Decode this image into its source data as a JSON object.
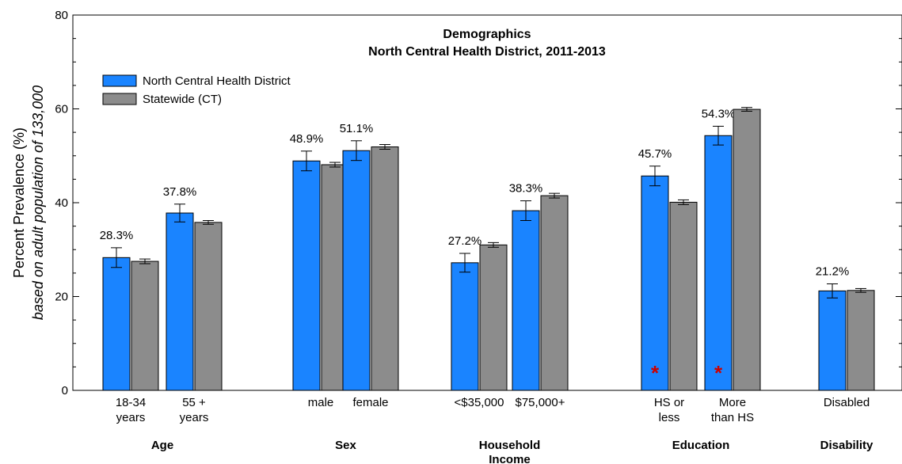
{
  "chart_data": {
    "type": "bar",
    "title": "Demographics",
    "subtitle": "North Central Health District, 2011-2013",
    "ylabel": "Percent Prevalence (%)",
    "ylabel_sub": "based on adult population of 133,000",
    "ylim": [
      0,
      80
    ],
    "yticks": [
      "0",
      "20",
      "40",
      "60",
      "80"
    ],
    "grid": false,
    "legend_position": "top-left",
    "colors": {
      "district": "#1a84ff",
      "statewide": "#8c8c8c"
    },
    "series": [
      {
        "name": "North Central Health District"
      },
      {
        "name": "Statewide (CT)"
      }
    ],
    "groups": [
      {
        "name": "Age",
        "categories": [
          {
            "label": [
              "18-34",
              "years"
            ],
            "district": 28.3,
            "district_label": "28.3%",
            "district_err": [
              26.2,
              30.4
            ],
            "statewide": 27.5,
            "statewide_err": [
              27.0,
              28.0
            ],
            "significant": false
          },
          {
            "label": [
              "55 +",
              "years"
            ],
            "district": 37.8,
            "district_label": "37.8%",
            "district_err": [
              35.9,
              39.7
            ],
            "statewide": 35.8,
            "statewide_err": [
              35.4,
              36.2
            ],
            "significant": false
          }
        ]
      },
      {
        "name": "Sex",
        "categories": [
          {
            "label": [
              "male"
            ],
            "district": 48.9,
            "district_label": "48.9%",
            "district_err": [
              46.8,
              51.0
            ],
            "statewide": 48.1,
            "statewide_err": [
              47.6,
              48.6
            ],
            "significant": false
          },
          {
            "label": [
              "female"
            ],
            "district": 51.1,
            "district_label": "51.1%",
            "district_err": [
              49.0,
              53.2
            ],
            "statewide": 51.9,
            "statewide_err": [
              51.4,
              52.4
            ],
            "significant": false
          }
        ]
      },
      {
        "name": "Household Income",
        "categories": [
          {
            "label": [
              "<$35,000"
            ],
            "district": 27.2,
            "district_label": "27.2%",
            "district_err": [
              25.2,
              29.2
            ],
            "statewide": 31.0,
            "statewide_err": [
              30.5,
              31.5
            ],
            "significant": false
          },
          {
            "label": [
              "$75,000+"
            ],
            "district": 38.3,
            "district_label": "38.3%",
            "district_err": [
              36.2,
              40.4
            ],
            "statewide": 41.5,
            "statewide_err": [
              41.0,
              42.0
            ],
            "significant": false
          }
        ]
      },
      {
        "name": "Education",
        "categories": [
          {
            "label": [
              "HS or",
              "less"
            ],
            "district": 45.7,
            "district_label": "45.7%",
            "district_err": [
              43.6,
              47.8
            ],
            "statewide": 40.1,
            "statewide_err": [
              39.6,
              40.6
            ],
            "significant": true
          },
          {
            "label": [
              "More",
              "than HS"
            ],
            "district": 54.3,
            "district_label": "54.3%",
            "district_err": [
              52.3,
              56.3
            ],
            "statewide": 59.9,
            "statewide_err": [
              59.5,
              60.3
            ],
            "significant": true
          }
        ]
      },
      {
        "name": "Disability",
        "categories": [
          {
            "label": [
              "Disabled"
            ],
            "district": 21.2,
            "district_label": "21.2%",
            "district_err": [
              19.7,
              22.7
            ],
            "statewide": 21.3,
            "statewide_err": [
              20.9,
              21.7
            ],
            "significant": false
          }
        ]
      }
    ],
    "significance_marker": "*"
  }
}
